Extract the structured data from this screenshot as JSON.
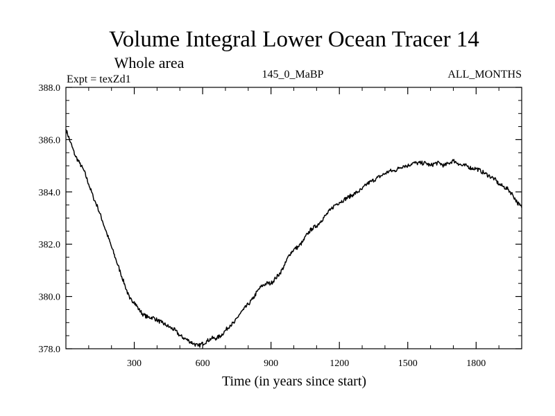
{
  "chart_data": {
    "type": "line",
    "title": "Volume Integral Lower Ocean Tracer 14",
    "subtitle": "Whole area",
    "experiment_label": "Expt = texZd1",
    "period_label": "145_0_MaBP",
    "months_label": "ALL_MONTHS",
    "xlabel": "Time (in years since start)",
    "ylabel": "",
    "xlim": [
      0,
      2000
    ],
    "ylim": [
      378.0,
      388.0
    ],
    "x_ticks": [
      300,
      600,
      900,
      1200,
      1500,
      1800
    ],
    "x_tick_labels": [
      "300",
      "600",
      "900",
      "1200",
      "1500",
      "1800"
    ],
    "y_ticks": [
      378.0,
      380.0,
      382.0,
      384.0,
      386.0,
      388.0
    ],
    "y_tick_labels": [
      "378.0",
      "380.0",
      "382.0",
      "384.0",
      "386.0",
      "388.0"
    ],
    "line_color": "#000000",
    "series": [
      {
        "name": "Lower Ocean Tracer 14",
        "x": [
          0,
          20,
          40,
          60,
          80,
          100,
          120,
          140,
          160,
          180,
          200,
          220,
          240,
          260,
          280,
          300,
          320,
          340,
          360,
          380,
          400,
          420,
          440,
          460,
          480,
          500,
          520,
          540,
          560,
          580,
          600,
          620,
          640,
          660,
          680,
          700,
          720,
          740,
          760,
          780,
          800,
          820,
          840,
          860,
          880,
          900,
          920,
          940,
          960,
          980,
          1000,
          1020,
          1040,
          1060,
          1080,
          1100,
          1120,
          1140,
          1160,
          1180,
          1200,
          1220,
          1240,
          1260,
          1280,
          1300,
          1320,
          1340,
          1360,
          1380,
          1400,
          1420,
          1440,
          1460,
          1480,
          1500,
          1520,
          1540,
          1560,
          1580,
          1600,
          1620,
          1640,
          1660,
          1680,
          1700,
          1720,
          1740,
          1760,
          1780,
          1800,
          1820,
          1840,
          1860,
          1880,
          1900,
          1920,
          1940,
          1960,
          1980,
          2000
        ],
        "y": [
          386.4,
          385.9,
          385.4,
          385.1,
          384.8,
          384.3,
          383.8,
          383.4,
          382.9,
          382.4,
          381.9,
          381.4,
          380.9,
          380.4,
          379.9,
          379.8,
          379.5,
          379.3,
          379.2,
          379.2,
          379.1,
          379.0,
          378.9,
          378.8,
          378.7,
          378.5,
          378.4,
          378.3,
          378.2,
          378.1,
          378.2,
          378.3,
          378.4,
          378.4,
          378.5,
          378.7,
          378.9,
          379.0,
          379.3,
          379.5,
          379.7,
          379.9,
          380.2,
          380.4,
          380.5,
          380.5,
          380.7,
          380.9,
          381.2,
          381.6,
          381.8,
          381.9,
          382.1,
          382.4,
          382.6,
          382.7,
          382.9,
          383.1,
          383.3,
          383.5,
          383.6,
          383.7,
          383.8,
          383.9,
          384.0,
          384.1,
          384.3,
          384.4,
          384.5,
          384.6,
          384.7,
          384.8,
          384.8,
          384.9,
          385.0,
          385.0,
          385.1,
          385.1,
          385.1,
          385.1,
          385.0,
          385.1,
          385.1,
          385.0,
          385.1,
          385.2,
          385.1,
          385.0,
          385.0,
          384.9,
          384.9,
          384.8,
          384.7,
          384.6,
          384.5,
          384.3,
          384.2,
          384.1,
          383.9,
          383.6,
          383.4
        ]
      }
    ]
  }
}
